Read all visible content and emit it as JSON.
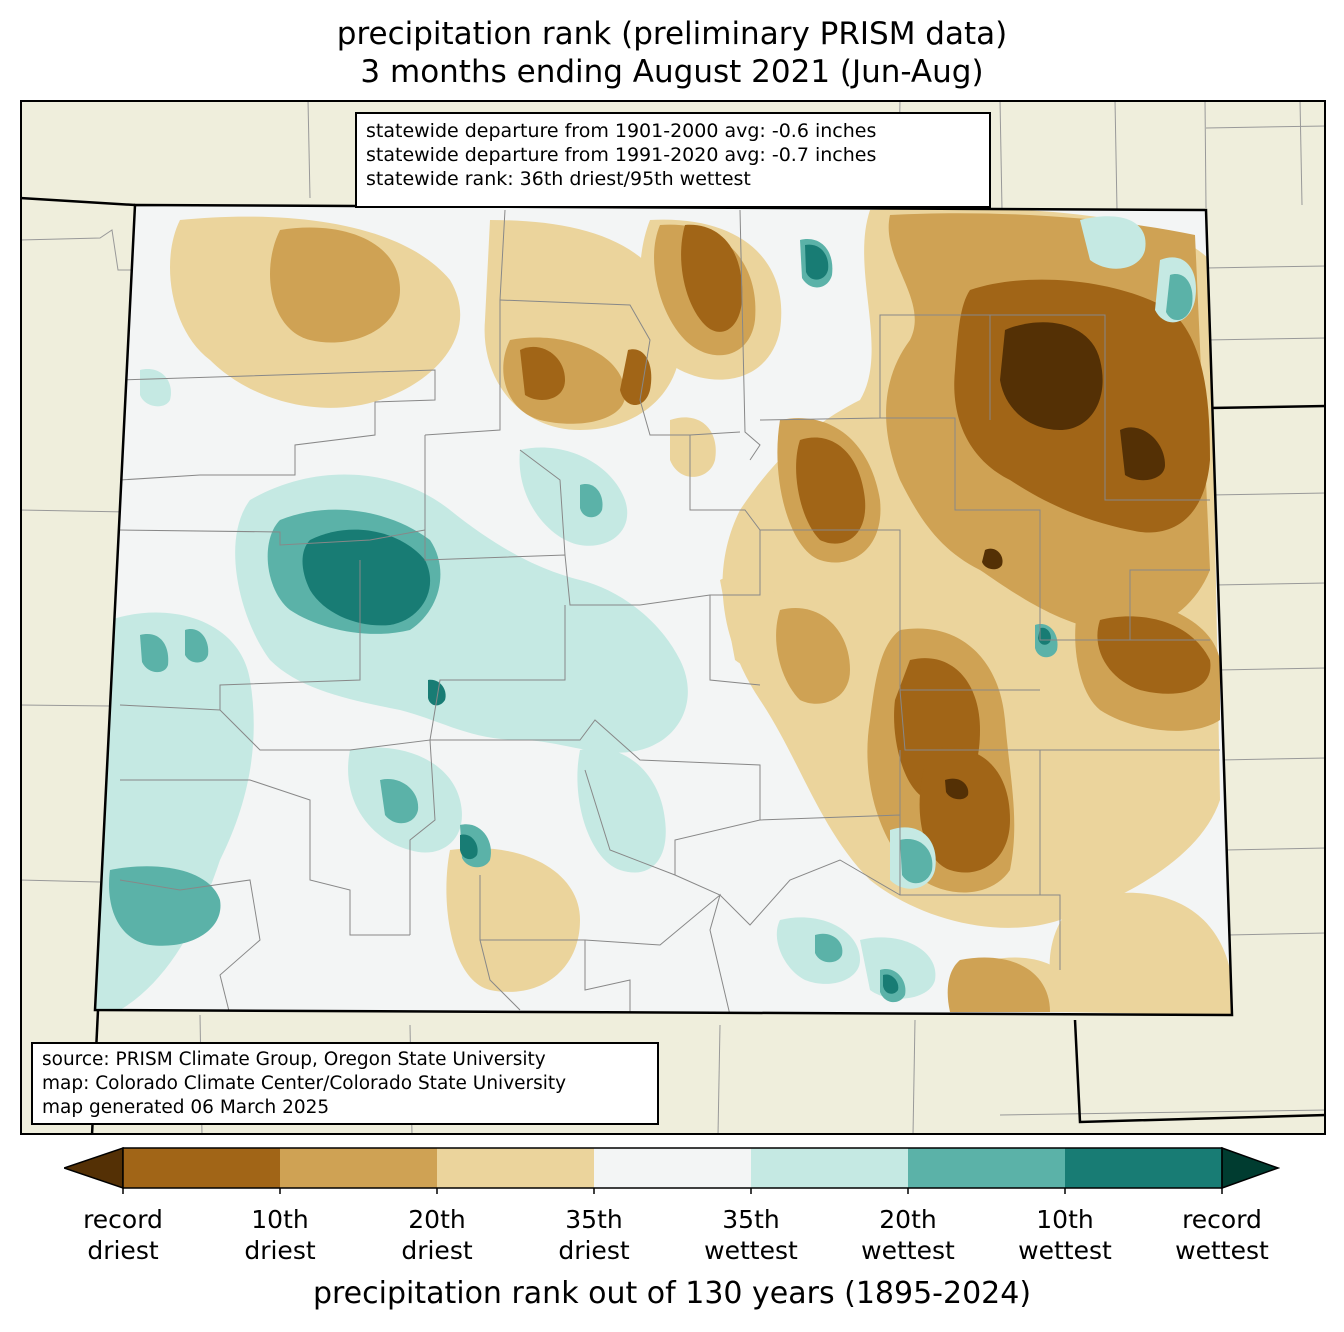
{
  "title": {
    "line1": "precipitation rank (preliminary PRISM data)",
    "line2": "3 months ending August 2021 (Jun-Aug)"
  },
  "stats": {
    "line1": "statewide departure from 1901-2000 avg: -0.6 inches",
    "line2": "statewide departure from 1991-2020 avg: -0.7 inches",
    "line3": "statewide rank: 36th driest/95th wettest"
  },
  "source": {
    "line1": "source: PRISM Climate Group, Oregon State University",
    "line2": "map: Colorado Climate Center/Colorado State University",
    "line3": "map generated 06 March 2025"
  },
  "colorbar": {
    "title": "precipitation rank out of 130 years (1895-2024)",
    "colors": [
      "#543005",
      "#a16517",
      "#cfa254",
      "#ebd49c",
      "#f3f5f5",
      "#c5e9e3",
      "#5bb2a8",
      "#187c74",
      "#003c30"
    ],
    "labels": [
      {
        "line1": "record",
        "line2": "driest"
      },
      {
        "line1": "10th",
        "line2": "driest"
      },
      {
        "line1": "20th",
        "line2": "driest"
      },
      {
        "line1": "35th",
        "line2": "driest"
      },
      {
        "line1": "35th",
        "line2": "wettest"
      },
      {
        "line1": "20th",
        "line2": "wettest"
      },
      {
        "line1": "10th",
        "line2": "wettest"
      },
      {
        "line1": "record",
        "line2": "wettest"
      }
    ]
  },
  "map_colors": {
    "background_land": "#efeedc",
    "county_lines": "#888888",
    "state_lines": "#000000"
  }
}
